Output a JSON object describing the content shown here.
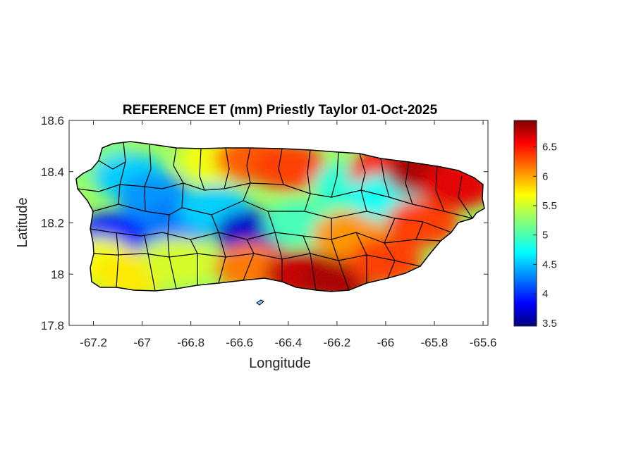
{
  "title": "REFERENCE ET (mm) Priestly Taylor 01-Oct-2025",
  "xlabel": "Longitude",
  "ylabel": "Latitude",
  "xticks": [
    "-67.2",
    "-67",
    "-66.8",
    "-66.6",
    "-66.4",
    "-66.2",
    "-66",
    "-65.8",
    "-65.6"
  ],
  "yticks": [
    "18.6",
    "18.4",
    "18.2",
    "18",
    "17.8"
  ],
  "colorbar_ticks": [
    "6.5",
    "6",
    "5.5",
    "5",
    "4.5",
    "4",
    "3.5"
  ],
  "colors": {
    "low": "#00007f",
    "mid": "#7fff7f",
    "high": "#7f0000",
    "boundary": "#000000"
  },
  "chart_data": {
    "type": "heatmap",
    "title": "REFERENCE ET (mm) Priestly Taylor 01-Oct-2025",
    "xlabel": "Longitude",
    "ylabel": "Latitude",
    "xlim": [
      -67.3,
      -65.58
    ],
    "ylim": [
      17.8,
      18.6
    ],
    "xticks": [
      -67.2,
      -67,
      -66.8,
      -66.6,
      -66.4,
      -66.2,
      -66,
      -65.8,
      -65.6
    ],
    "yticks": [
      17.8,
      18,
      18.2,
      18.4,
      18.6
    ],
    "colormap": "jet",
    "clim": [
      3.45,
      6.95
    ],
    "colorbar_ticks": [
      3.5,
      4,
      4.5,
      5,
      5.5,
      6,
      6.5
    ],
    "region": "Puerto Rico",
    "field_samples": [
      {
        "lon": -67.18,
        "lat": 18.45,
        "value": 5.2
      },
      {
        "lon": -67.05,
        "lat": 18.38,
        "value": 4.6
      },
      {
        "lon": -66.95,
        "lat": 18.3,
        "value": 4.4
      },
      {
        "lon": -67.12,
        "lat": 18.15,
        "value": 4.0
      },
      {
        "lon": -67.18,
        "lat": 18.05,
        "value": 5.6
      },
      {
        "lon": -67.05,
        "lat": 18.0,
        "value": 5.7
      },
      {
        "lon": -66.85,
        "lat": 18.2,
        "value": 4.3
      },
      {
        "lon": -66.85,
        "lat": 18.05,
        "value": 5.5
      },
      {
        "lon": -66.7,
        "lat": 18.45,
        "value": 5.6
      },
      {
        "lon": -66.7,
        "lat": 18.25,
        "value": 4.6
      },
      {
        "lon": -66.55,
        "lat": 18.16,
        "value": 3.7
      },
      {
        "lon": -66.55,
        "lat": 18.45,
        "value": 6.2
      },
      {
        "lon": -66.55,
        "lat": 18.03,
        "value": 6.1
      },
      {
        "lon": -66.4,
        "lat": 18.42,
        "value": 6.3
      },
      {
        "lon": -66.35,
        "lat": 18.2,
        "value": 5.0
      },
      {
        "lon": -66.35,
        "lat": 18.0,
        "value": 6.7
      },
      {
        "lon": -66.2,
        "lat": 17.98,
        "value": 6.8
      },
      {
        "lon": -66.15,
        "lat": 18.35,
        "value": 4.9
      },
      {
        "lon": -66.15,
        "lat": 18.15,
        "value": 6.0
      },
      {
        "lon": -66.0,
        "lat": 18.4,
        "value": 6.5
      },
      {
        "lon": -66.0,
        "lat": 18.3,
        "value": 4.8
      },
      {
        "lon": -66.0,
        "lat": 18.05,
        "value": 6.3
      },
      {
        "lon": -65.85,
        "lat": 18.4,
        "value": 6.8
      },
      {
        "lon": -65.85,
        "lat": 18.2,
        "value": 6.3
      },
      {
        "lon": -65.7,
        "lat": 18.35,
        "value": 6.6
      }
    ]
  }
}
